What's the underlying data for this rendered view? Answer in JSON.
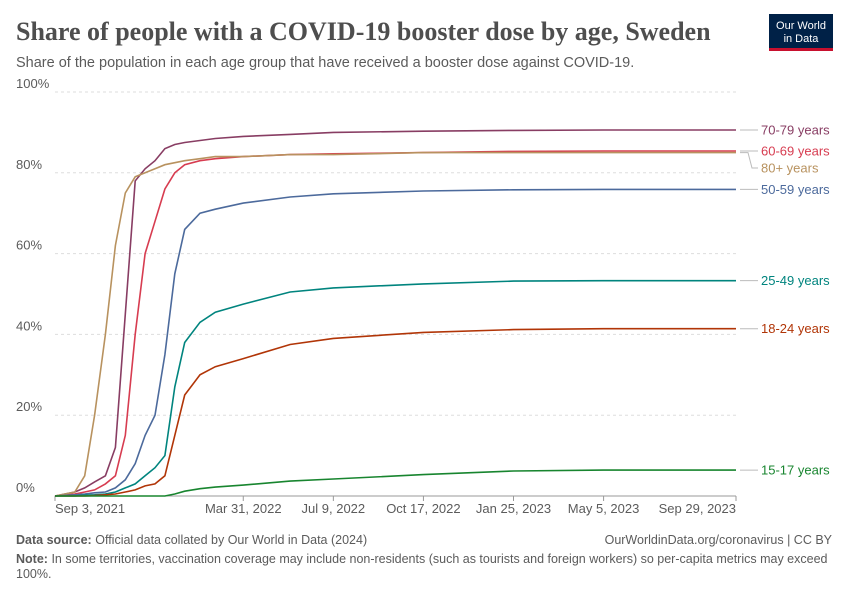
{
  "chart_data": {
    "type": "line",
    "title": "Share of people with a COVID-19 booster dose by age, Sweden",
    "subtitle": "Share of the population in each age group that have received a booster dose against COVID-19.",
    "logo": [
      "Our World",
      "in Data"
    ],
    "source_label": "Data source:",
    "source": "Official data collated by Our World in Data (2024)",
    "url": "OurWorldinData.org/coronavirus | CC BY",
    "note_label": "Note:",
    "note": "In some territories, vaccination coverage may include non-residents (such as tourists and foreign workers) so per-capita metrics may exceed 100%.",
    "x": [
      "2021-09-03",
      "2021-09-25",
      "2021-10-06",
      "2021-10-17",
      "2021-10-29",
      "2021-11-09",
      "2021-11-20",
      "2021-12-01",
      "2021-12-12",
      "2021-12-23",
      "2022-01-03",
      "2022-01-14",
      "2022-01-25",
      "2022-02-11",
      "2022-02-28",
      "2022-03-31",
      "2022-05-22",
      "2022-07-09",
      "2022-10-17",
      "2023-01-25",
      "2023-05-05",
      "2023-09-29"
    ],
    "xlim": [
      "2021-09-03",
      "2023-09-29"
    ],
    "xticks": [
      {
        "value": "2021-09-03",
        "label": "Sep 3, 2021"
      },
      {
        "value": "2022-03-31",
        "label": "Mar 31, 2022"
      },
      {
        "value": "2022-07-09",
        "label": "Jul 9, 2022"
      },
      {
        "value": "2022-10-17",
        "label": "Oct 17, 2022"
      },
      {
        "value": "2023-01-25",
        "label": "Jan 25, 2023"
      },
      {
        "value": "2023-05-05",
        "label": "May 5, 2023"
      },
      {
        "value": "2023-09-29",
        "label": "Sep 29, 2023"
      }
    ],
    "ylim": [
      0,
      100
    ],
    "yticks": [
      {
        "value": 0,
        "label": "0%"
      },
      {
        "value": 20,
        "label": "20%"
      },
      {
        "value": 40,
        "label": "40%"
      },
      {
        "value": 60,
        "label": "60%"
      },
      {
        "value": 80,
        "label": "80%"
      },
      {
        "value": 100,
        "label": "100%"
      }
    ],
    "grid": true,
    "series": [
      {
        "name": "70-79 years",
        "color": "#883d63",
        "values": [
          0,
          1,
          2,
          3.5,
          5,
          12,
          45,
          78,
          81,
          83,
          86,
          87,
          87.5,
          88,
          88.5,
          89,
          89.5,
          90,
          90.3,
          90.5,
          90.6,
          90.6
        ]
      },
      {
        "name": "60-69 years",
        "color": "#d73c50",
        "values": [
          0,
          0.5,
          1,
          1.5,
          3,
          5,
          15,
          40,
          60,
          68,
          76,
          80,
          82,
          83,
          83.5,
          84,
          84.5,
          84.7,
          85,
          85.3,
          85.4,
          85.4
        ]
      },
      {
        "name": "80+ years",
        "color": "#b8925f",
        "values": [
          0,
          1,
          5,
          20,
          40,
          62,
          75,
          79,
          80,
          81,
          82,
          82.5,
          83,
          83.5,
          84,
          84,
          84.5,
          84.5,
          85,
          85,
          85,
          85
        ]
      },
      {
        "name": "50-59 years",
        "color": "#4c6a9c",
        "values": [
          0,
          0.3,
          0.5,
          0.8,
          1,
          2,
          4,
          8,
          15,
          20,
          35,
          55,
          66,
          70,
          71,
          72.5,
          74,
          74.8,
          75.5,
          75.8,
          75.9,
          75.9
        ]
      },
      {
        "name": "25-49 years",
        "color": "#00847e",
        "values": [
          0,
          0,
          0.2,
          0.3,
          0.5,
          1,
          2,
          3,
          5,
          7,
          10,
          27,
          38,
          43,
          45.5,
          47.5,
          50.5,
          51.5,
          52.5,
          53.2,
          53.3,
          53.3
        ]
      },
      {
        "name": "18-24 years",
        "color": "#b13507",
        "values": [
          0,
          0,
          0,
          0.1,
          0.3,
          0.5,
          1,
          1.5,
          2.5,
          3,
          5,
          15,
          25,
          30,
          32,
          34,
          37.5,
          39,
          40.5,
          41.2,
          41.4,
          41.4
        ]
      },
      {
        "name": "15-17 years",
        "color": "#18852f",
        "values": [
          0,
          0,
          0,
          0,
          0,
          0,
          0,
          0,
          0,
          0,
          0,
          0.5,
          1.2,
          1.8,
          2.2,
          2.7,
          3.7,
          4.2,
          5.3,
          6.2,
          6.4,
          6.4
        ]
      }
    ]
  }
}
